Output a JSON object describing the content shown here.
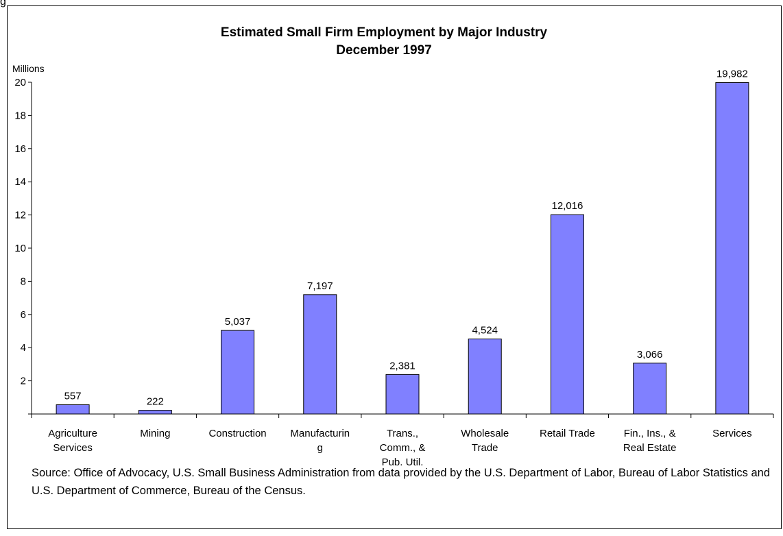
{
  "page_label": "g",
  "chart_data": {
    "type": "bar",
    "title": "Estimated Small Firm Employment by Major Industry",
    "subtitle": "December 1997",
    "ylabel": "Millions",
    "xlabel": "",
    "ylim": [
      0,
      20
    ],
    "yticks": [
      2,
      4,
      6,
      8,
      10,
      12,
      14,
      16,
      18,
      20
    ],
    "categories": [
      [
        "Agriculture",
        "Services"
      ],
      [
        "Mining"
      ],
      [
        "Construction"
      ],
      [
        "Manufacturin",
        "g"
      ],
      [
        "Trans.,",
        "Comm., &",
        "Pub. Util."
      ],
      [
        "Wholesale",
        "Trade"
      ],
      [
        "Retail Trade"
      ],
      [
        "Fin., Ins., &",
        "Real Estate"
      ],
      [
        "Services"
      ]
    ],
    "values": [
      0.557,
      0.222,
      5.037,
      7.197,
      2.381,
      4.524,
      12.016,
      3.066,
      19.982
    ],
    "data_labels": [
      "557",
      "222",
      "5,037",
      "7,197",
      "2,381",
      "4,524",
      "12,016",
      "3,066",
      "19,982"
    ],
    "bar_color": "#8080ff",
    "grid": false,
    "legend": "none"
  },
  "source": "Source:  Office of Advocacy, U.S. Small Business Administration from data  provided  by the U.S.  Department of Labor, Bureau of Labor Statistics and U.S. Department of Commerce, Bureau of the Census."
}
